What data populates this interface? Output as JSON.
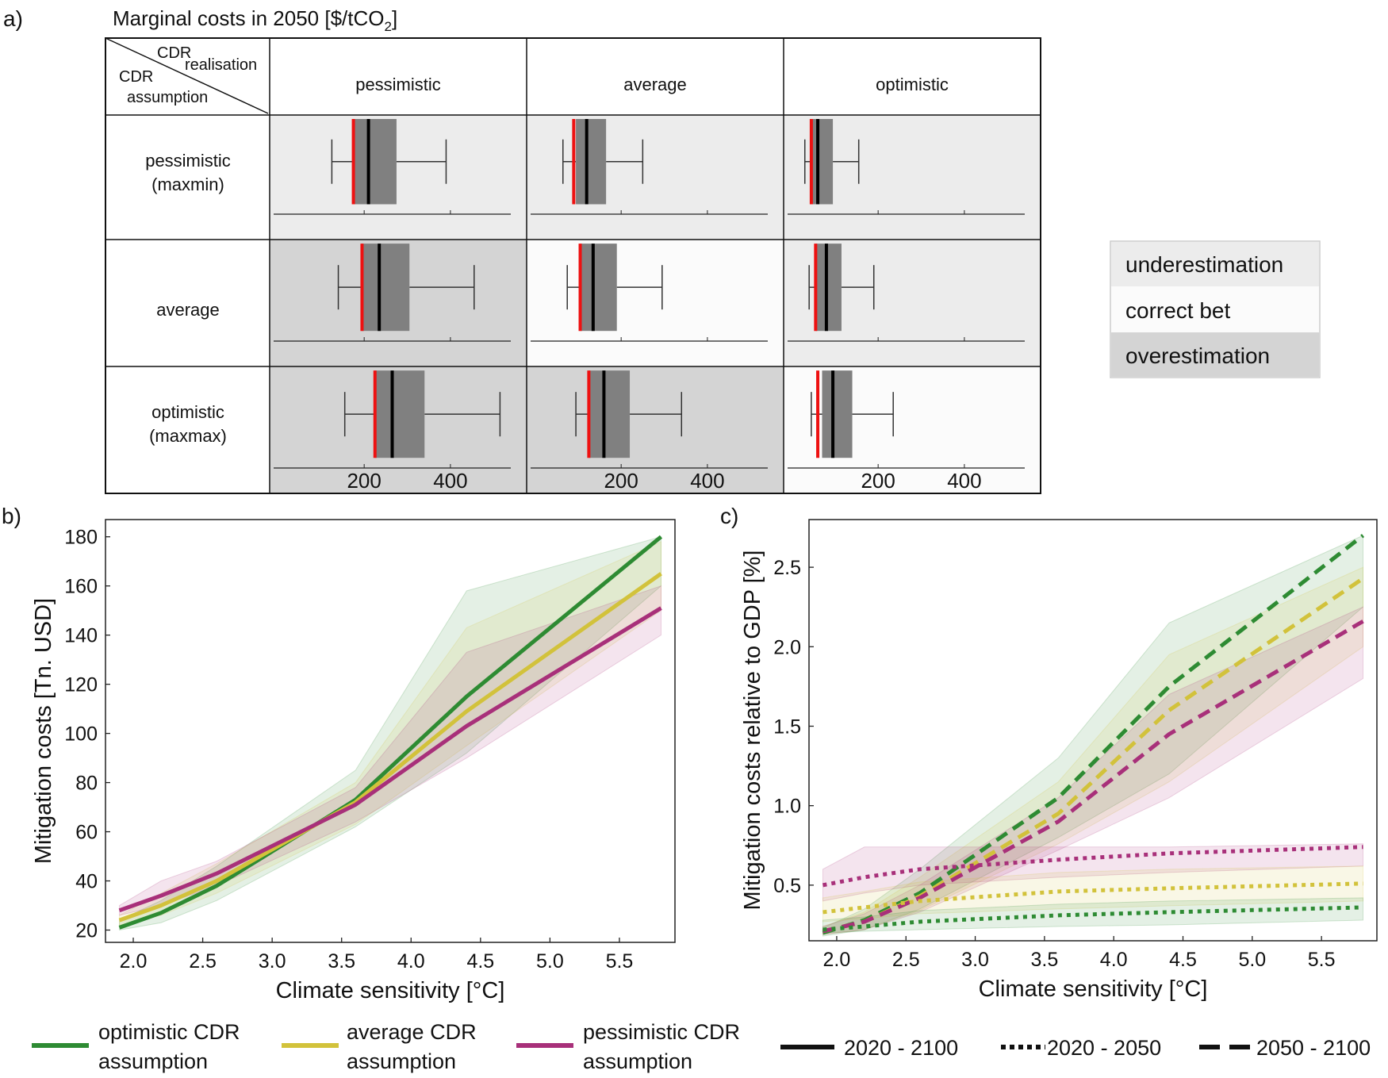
{
  "panel_a": {
    "label": "a)",
    "title_main": "Marginal costs in 2050 [$/tCO",
    "title_sub": "2",
    "title_end": "]",
    "corner_top": "CDR",
    "corner_top2": "realisation",
    "corner_bottom": "CDR",
    "corner_bottom2": "assumption",
    "columns": [
      "pessimistic",
      "average",
      "optimistic"
    ],
    "rows": [
      [
        "pessimistic",
        "(maxmin)"
      ],
      [
        "average"
      ],
      [
        "optimistic",
        "(maxmax)"
      ]
    ],
    "legend": {
      "items": [
        {
          "label": "underestimation",
          "color": "#ececec"
        },
        {
          "label": "correct bet",
          "color": "#fbfbfb"
        },
        {
          "label": "overestimation",
          "color": "#d4d4d4"
        }
      ]
    }
  },
  "panel_b": {
    "label": "b)"
  },
  "panel_c": {
    "label": "c)"
  },
  "bottom_legend": {
    "series": [
      {
        "label1": "optimistic CDR",
        "label2": "assumption",
        "color": "#2e8b33"
      },
      {
        "label1": "average CDR",
        "label2": "assumption",
        "color": "#d2c23b"
      },
      {
        "label1": "pessimistic CDR",
        "label2": "assumption",
        "color": "#a8307a"
      }
    ],
    "periods": [
      {
        "label": "2020 - 2100",
        "style": "solid"
      },
      {
        "label": "2020 - 2050",
        "style": "dotted"
      },
      {
        "label": "2050 - 2100",
        "style": "dashed"
      }
    ]
  },
  "colors": {
    "optimistic": "#2e8b33",
    "average": "#d2c23b",
    "pessimistic": "#a8307a",
    "underestimation": "#ececec",
    "correct": "#fbfbfb",
    "overestimation": "#d4d4d4",
    "box": "#808080",
    "red": "#ee1111"
  },
  "chart_data": [
    {
      "id": "a",
      "type": "boxplot-grid",
      "title": "Marginal costs in 2050 [$/tCO2]",
      "xticks": [
        200,
        400
      ],
      "xlim": [
        -10,
        540
      ],
      "cells": [
        {
          "row": 0,
          "col": 0,
          "shade": "underestimation",
          "whisker_low": 125,
          "q1": 175,
          "median": 210,
          "q3": 275,
          "whisker_high": 390,
          "red": 175
        },
        {
          "row": 0,
          "col": 1,
          "shade": "underestimation",
          "whisker_low": 65,
          "q1": 95,
          "median": 120,
          "q3": 165,
          "whisker_high": 250,
          "red": 90
        },
        {
          "row": 0,
          "col": 2,
          "shade": "underestimation",
          "whisker_low": 30,
          "q1": 45,
          "median": 60,
          "q3": 95,
          "whisker_high": 155,
          "red": 45
        },
        {
          "row": 1,
          "col": 0,
          "shade": "overestimation",
          "whisker_low": 140,
          "q1": 195,
          "median": 235,
          "q3": 305,
          "whisker_high": 455,
          "red": 195
        },
        {
          "row": 1,
          "col": 1,
          "shade": "correct",
          "whisker_low": 75,
          "q1": 105,
          "median": 135,
          "q3": 190,
          "whisker_high": 295,
          "red": 105
        },
        {
          "row": 1,
          "col": 2,
          "shade": "underestimation",
          "whisker_low": 40,
          "q1": 55,
          "median": 80,
          "q3": 115,
          "whisker_high": 190,
          "red": 55
        },
        {
          "row": 2,
          "col": 0,
          "shade": "overestimation",
          "whisker_low": 155,
          "q1": 225,
          "median": 265,
          "q3": 340,
          "whisker_high": 515,
          "red": 225
        },
        {
          "row": 2,
          "col": 1,
          "shade": "overestimation",
          "whisker_low": 95,
          "q1": 125,
          "median": 160,
          "q3": 220,
          "whisker_high": 340,
          "red": 125
        },
        {
          "row": 2,
          "col": 2,
          "shade": "correct",
          "whisker_low": 45,
          "q1": 70,
          "median": 95,
          "q3": 140,
          "whisker_high": 235,
          "red": 60
        }
      ]
    },
    {
      "id": "b",
      "type": "line",
      "xlabel": "Climate sensitivity [°C]",
      "ylabel": "Mitigation costs [Tn. USD]",
      "xlim": [
        1.8,
        5.9
      ],
      "ylim": [
        15,
        187
      ],
      "xticks": [
        2.0,
        2.5,
        3.0,
        3.5,
        4.0,
        4.5,
        5.0,
        5.5
      ],
      "yticks": [
        20,
        40,
        60,
        80,
        100,
        120,
        140,
        160,
        180
      ],
      "x": [
        1.9,
        2.2,
        2.6,
        3.6,
        4.4,
        5.8
      ],
      "series": [
        {
          "name": "optimistic CDR assumption",
          "style": "solid",
          "values": [
            21,
            27,
            38,
            73,
            115,
            180
          ],
          "low": [
            20,
            23,
            32,
            62,
            92,
            160
          ],
          "high": [
            24,
            32,
            46,
            85,
            158,
            180
          ]
        },
        {
          "name": "average CDR assumption",
          "style": "solid",
          "values": [
            24,
            30,
            40,
            72,
            109,
            165
          ],
          "low": [
            22,
            26,
            35,
            63,
            95,
            150
          ],
          "high": [
            26,
            35,
            47,
            80,
            143,
            178
          ]
        },
        {
          "name": "pessimistic CDR assumption",
          "style": "solid",
          "values": [
            28,
            34,
            43,
            71,
            103,
            151
          ],
          "low": [
            26,
            30,
            38,
            64,
            90,
            140
          ],
          "high": [
            30,
            40,
            48,
            78,
            133,
            160
          ]
        }
      ]
    },
    {
      "id": "c",
      "type": "line",
      "xlabel": "Climate sensitivity [°C]",
      "ylabel": "Mitigation costs relative to GDP [%]",
      "xlim": [
        1.8,
        5.9
      ],
      "ylim": [
        0.15,
        2.8
      ],
      "xticks": [
        2.0,
        2.5,
        3.0,
        3.5,
        4.0,
        4.5,
        5.0,
        5.5
      ],
      "yticks": [
        0.5,
        1.0,
        1.5,
        2.0,
        2.5
      ],
      "x": [
        1.9,
        2.2,
        2.6,
        3.6,
        4.4,
        5.8
      ],
      "series": [
        {
          "name": "optimistic CDR assumption 2050-2100",
          "color_key": "optimistic",
          "style": "dashed",
          "values": [
            0.2,
            0.28,
            0.45,
            1.05,
            1.75,
            2.7
          ],
          "low": [
            0.18,
            0.22,
            0.35,
            0.8,
            1.2,
            2.25
          ],
          "high": [
            0.23,
            0.35,
            0.6,
            1.3,
            2.15,
            2.7
          ]
        },
        {
          "name": "average CDR assumption 2050-2100",
          "color_key": "average",
          "style": "dashed",
          "values": [
            0.21,
            0.27,
            0.43,
            0.95,
            1.6,
            2.43
          ],
          "low": [
            0.19,
            0.22,
            0.34,
            0.76,
            1.15,
            2.0
          ],
          "high": [
            0.24,
            0.33,
            0.55,
            1.15,
            1.95,
            2.5
          ]
        },
        {
          "name": "pessimistic CDR assumption 2050-2100",
          "color_key": "pessimistic",
          "style": "dashed",
          "values": [
            0.21,
            0.27,
            0.42,
            0.9,
            1.45,
            2.16
          ],
          "low": [
            0.19,
            0.22,
            0.33,
            0.72,
            1.05,
            1.8
          ],
          "high": [
            0.24,
            0.32,
            0.5,
            1.05,
            1.7,
            2.25
          ]
        },
        {
          "name": "pessimistic CDR assumption 2020-2050",
          "color_key": "pessimistic",
          "style": "dotted",
          "values": [
            0.5,
            0.55,
            0.6,
            0.66,
            0.7,
            0.74
          ],
          "low": [
            0.4,
            0.45,
            0.5,
            0.55,
            0.58,
            0.62
          ],
          "high": [
            0.6,
            0.74,
            0.74,
            0.74,
            0.74,
            0.76
          ]
        },
        {
          "name": "average CDR assumption 2020-2050",
          "color_key": "average",
          "style": "dotted",
          "values": [
            0.33,
            0.36,
            0.4,
            0.46,
            0.48,
            0.51
          ],
          "low": [
            0.27,
            0.29,
            0.32,
            0.35,
            0.37,
            0.4
          ],
          "high": [
            0.42,
            0.46,
            0.52,
            0.58,
            0.6,
            0.62
          ]
        },
        {
          "name": "optimistic CDR assumption 2020-2050",
          "color_key": "optimistic",
          "style": "dotted",
          "values": [
            0.22,
            0.24,
            0.27,
            0.31,
            0.33,
            0.36
          ],
          "low": [
            0.2,
            0.21,
            0.22,
            0.24,
            0.25,
            0.28
          ],
          "high": [
            0.28,
            0.3,
            0.34,
            0.38,
            0.4,
            0.42
          ]
        }
      ]
    }
  ]
}
